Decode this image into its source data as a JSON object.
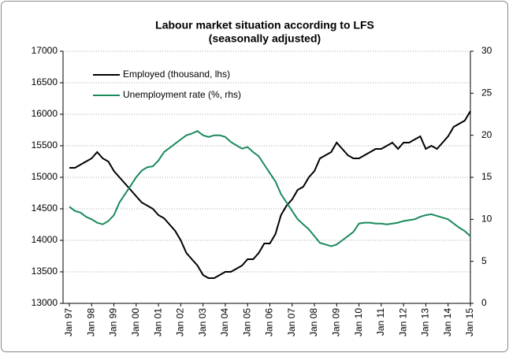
{
  "chart_data": {
    "type": "line",
    "title": "Labour market situation according to LFS",
    "subtitle": "(seasonally adjusted)",
    "categories": [
      "Jan 97",
      null,
      null,
      null,
      "Jan 98",
      null,
      null,
      null,
      "Jan 99",
      null,
      null,
      null,
      "Jan 00",
      null,
      null,
      null,
      "Jan 01",
      null,
      null,
      null,
      "Jan 02",
      null,
      null,
      null,
      "Jan 03",
      null,
      null,
      null,
      "Jan 04",
      null,
      null,
      null,
      "Jan 05",
      null,
      null,
      null,
      "Jan 06",
      null,
      null,
      null,
      "Jan 07",
      null,
      null,
      null,
      "Jan 08",
      null,
      null,
      null,
      "Jan 09",
      null,
      null,
      null,
      "Jan 10",
      null,
      null,
      null,
      "Jan 11",
      null,
      null,
      null,
      "Jan 12",
      null,
      null,
      null,
      "Jan 13",
      null,
      null,
      null,
      "Jan 14",
      null,
      null,
      null,
      "Jan 15"
    ],
    "series": [
      {
        "name": "Employed (thousand, lhs)",
        "color": "#000000",
        "axis": "y",
        "values": [
          15150,
          15150,
          15200,
          15250,
          15300,
          15400,
          15300,
          15250,
          15100,
          15000,
          14900,
          14800,
          14700,
          14600,
          14550,
          14500,
          14400,
          14350,
          14250,
          14150,
          14000,
          13800,
          13700,
          13600,
          13450,
          13400,
          13400,
          13450,
          13500,
          13500,
          13550,
          13600,
          13700,
          13700,
          13800,
          13950,
          13950,
          14100,
          14400,
          14550,
          14650,
          14800,
          14850,
          15000,
          15100,
          15300,
          15350,
          15400,
          15550,
          15450,
          15350,
          15300,
          15300,
          15350,
          15400,
          15450,
          15450,
          15500,
          15550,
          15450,
          15550,
          15550,
          15600,
          15650,
          15450,
          15500,
          15450,
          15550,
          15650,
          15800,
          15850,
          15900,
          16050
        ]
      },
      {
        "name": "Unemployment rate (%, rhs)",
        "color": "#1a8a5a",
        "axis": "y2",
        "values": [
          11.5,
          11.0,
          10.8,
          10.3,
          10.0,
          9.6,
          9.4,
          9.8,
          10.5,
          12.0,
          13.0,
          14.0,
          15.0,
          15.8,
          16.2,
          16.3,
          17.0,
          18.0,
          18.5,
          19.0,
          19.5,
          20.0,
          20.2,
          20.5,
          20.0,
          19.8,
          20.0,
          20.0,
          19.8,
          19.2,
          18.8,
          18.4,
          18.6,
          18.0,
          17.5,
          16.5,
          15.5,
          14.5,
          13.0,
          12.0,
          11.0,
          10.0,
          9.4,
          8.8,
          8.0,
          7.2,
          7.0,
          6.8,
          7.0,
          7.5,
          8.0,
          8.5,
          9.5,
          9.6,
          9.6,
          9.5,
          9.5,
          9.4,
          9.5,
          9.6,
          9.8,
          9.9,
          10.0,
          10.3,
          10.5,
          10.6,
          10.4,
          10.2,
          10.0,
          9.5,
          9.0,
          8.6,
          8.0
        ]
      }
    ],
    "ylim": [
      13000,
      17000
    ],
    "yticks": [
      13000,
      13500,
      14000,
      14500,
      15000,
      15500,
      16000,
      16500,
      17000
    ],
    "y2lim": [
      0,
      30
    ],
    "y2ticks": [
      0,
      5,
      10,
      15,
      20,
      25,
      30
    ],
    "grid": true,
    "legend": "upper-left"
  }
}
